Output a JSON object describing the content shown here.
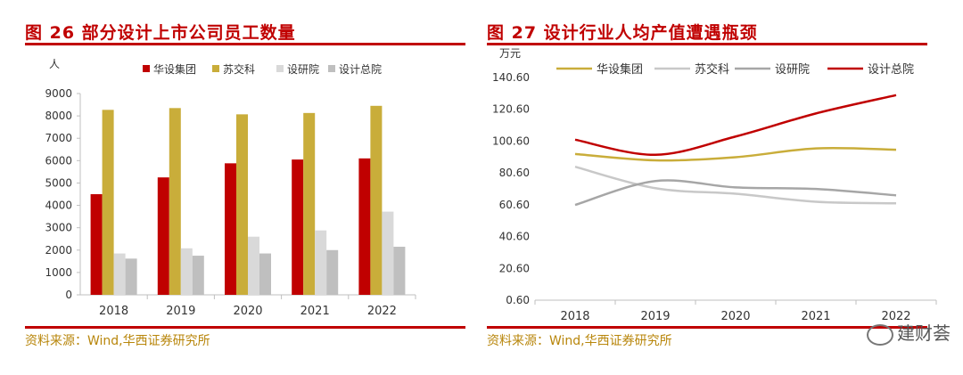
{
  "charts": [
    {
      "title": "图 26 部分设计上市公司员工数量",
      "source": "资料来源：Wind,华西证券研究所"
    },
    {
      "title": "图 27 设计行业人均产值遭遇瓶颈",
      "source": "资料来源：Wind,华西证券研究所"
    }
  ],
  "watermark": "建财荟",
  "chart_data": [
    {
      "type": "bar",
      "ylabel": "人",
      "ylim": [
        0,
        9000
      ],
      "yticks": [
        "9000",
        "8000",
        "7000",
        "6000",
        "5000",
        "4000",
        "3000",
        "2000",
        "1000",
        "0"
      ],
      "categories": [
        "2018",
        "2019",
        "2020",
        "2021",
        "2022"
      ],
      "legend_position": "top",
      "grid": false,
      "series": [
        {
          "name": "华设集团",
          "color": "#c00000",
          "values": [
            4500,
            5250,
            5880,
            6050,
            6100
          ]
        },
        {
          "name": "苏交科",
          "color": "#c9ad3a",
          "values": [
            8270,
            8350,
            8070,
            8130,
            8450
          ]
        },
        {
          "name": "设研院",
          "color": "#d9d9d9",
          "values": [
            1850,
            2080,
            2600,
            2880,
            3720
          ]
        },
        {
          "name": "设计总院",
          "color": "#bfbfbf",
          "values": [
            1620,
            1750,
            1850,
            2000,
            2150
          ]
        }
      ]
    },
    {
      "type": "line",
      "ylabel": "万元",
      "ylim": [
        0.6,
        140.6
      ],
      "yticks": [
        "140.60",
        "120.60",
        "100.60",
        "80.60",
        "60.60",
        "40.60",
        "20.60",
        "0.60"
      ],
      "categories": [
        "2018",
        "2019",
        "2020",
        "2021",
        "2022"
      ],
      "legend_position": "top",
      "grid": false,
      "series": [
        {
          "name": "华设集团",
          "color": "#c9ad3a",
          "values": [
            92.5,
            88.5,
            90.5,
            96,
            95.2
          ]
        },
        {
          "name": "苏交科",
          "color": "#c8c8c8",
          "values": [
            84.5,
            71,
            67.5,
            62.5,
            61.5
          ]
        },
        {
          "name": "设研院",
          "color": "#a6a6a6",
          "values": [
            60.5,
            75.5,
            71.5,
            70.5,
            66.5
          ]
        },
        {
          "name": "设计总院",
          "color": "#c00000",
          "values": [
            101.5,
            92,
            103.5,
            118,
            129.5
          ]
        }
      ]
    }
  ]
}
